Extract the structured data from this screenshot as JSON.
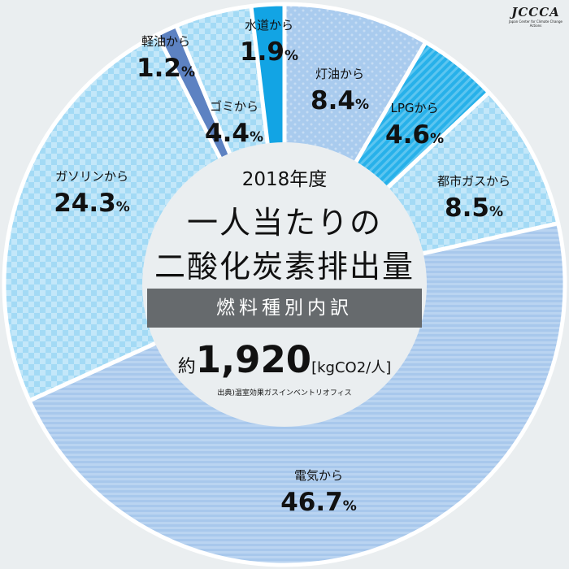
{
  "header": {
    "year": "2018年度",
    "title_line1": "一人当たりの",
    "title_line2": "二酸化炭素排出量",
    "band": "燃料種別内訳",
    "total_prefix": "約",
    "total_value": "1,920",
    "total_unit": "[kgCO2/人]",
    "source": "出典)温室効果ガスインベントリオフィス"
  },
  "logo": {
    "text": "JCCCA",
    "subtext": "Japan Center for Climate Change Actions"
  },
  "chart_data": {
    "type": "pie",
    "unit": "%",
    "slices": [
      {
        "label": "灯油から",
        "value": 8.4,
        "value_text": "8.4",
        "color": "#a9cbee"
      },
      {
        "label": "LPGから",
        "value": 4.6,
        "value_text": "4.6",
        "color": "#27b1ea"
      },
      {
        "label": "都市ガスから",
        "value": 8.5,
        "value_text": "8.5",
        "color": "#a8dcf6"
      },
      {
        "label": "電気から",
        "value": 46.7,
        "value_text": "46.7",
        "color": "#a8c8ec"
      },
      {
        "label": "ガソリンから",
        "value": 24.3,
        "value_text": "24.3",
        "color": "#a8dcf6"
      },
      {
        "label": "軽油から",
        "value": 1.2,
        "value_text": "1.2",
        "color": "#5d82c2"
      },
      {
        "label": "ゴミから",
        "value": 4.4,
        "value_text": "4.4",
        "color": "#a8dcf6"
      },
      {
        "label": "水道から",
        "value": 1.9,
        "value_text": "1.9",
        "color": "#12a4e4"
      }
    ]
  }
}
